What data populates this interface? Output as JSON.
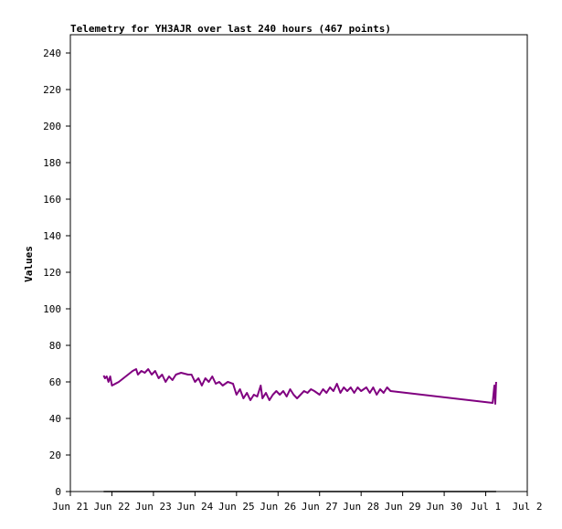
{
  "chart_data": {
    "type": "line",
    "title": "Telemetry for YH3AJR over last 240 hours (467 points)",
    "ylabel": "Values",
    "xlabel": "",
    "ylim": [
      0,
      250
    ],
    "xlim": [
      "Jun 21",
      "Jul 2"
    ],
    "y_ticks": [
      0,
      20,
      40,
      60,
      80,
      100,
      120,
      140,
      160,
      180,
      200,
      220,
      240
    ],
    "x_ticks": [
      "Jun 21",
      "Jun 22",
      "Jun 23",
      "Jun 24",
      "Jun 25",
      "Jun 26",
      "Jun 27",
      "Jun 28",
      "Jun 29",
      "Jun 30",
      "Jul 1",
      "Jul 2"
    ],
    "grid": false,
    "colors": {
      "series": "#800080",
      "baseline": "#000000",
      "axis": "#000000"
    },
    "series": [
      {
        "color": "#800080",
        "points": [
          [
            "Jun 21 19:12",
            63.5
          ],
          [
            "Jun 21 20:00",
            62
          ],
          [
            "Jun 21 21:00",
            63
          ],
          [
            "Jun 21 22:00",
            60
          ],
          [
            "Jun 21 23:00",
            63
          ],
          [
            "Jun 22 00:00",
            58
          ],
          [
            "Jun 22 04:00",
            60
          ],
          [
            "Jun 22 08:00",
            63
          ],
          [
            "Jun 22 12:00",
            66
          ],
          [
            "Jun 22 14:00",
            67
          ],
          [
            "Jun 22 15:00",
            64
          ],
          [
            "Jun 22 17:00",
            66
          ],
          [
            "Jun 22 19:00",
            65
          ],
          [
            "Jun 22 21:00",
            67
          ],
          [
            "Jun 22 23:00",
            64
          ],
          [
            "Jun 23 01:00",
            66
          ],
          [
            "Jun 23 03:00",
            62
          ],
          [
            "Jun 23 05:00",
            64
          ],
          [
            "Jun 23 07:00",
            60
          ],
          [
            "Jun 23 09:00",
            63
          ],
          [
            "Jun 23 11:00",
            61
          ],
          [
            "Jun 23 13:00",
            64
          ],
          [
            "Jun 23 16:00",
            65
          ],
          [
            "Jun 23 20:00",
            64
          ],
          [
            "Jun 23 22:00",
            64
          ],
          [
            "Jun 24 00:00",
            60
          ],
          [
            "Jun 24 02:00",
            62
          ],
          [
            "Jun 24 04:00",
            58
          ],
          [
            "Jun 24 06:00",
            62
          ],
          [
            "Jun 24 08:00",
            60
          ],
          [
            "Jun 24 10:00",
            63
          ],
          [
            "Jun 24 12:00",
            59
          ],
          [
            "Jun 24 14:00",
            60
          ],
          [
            "Jun 24 16:00",
            58
          ],
          [
            "Jun 24 19:00",
            60
          ],
          [
            "Jun 24 22:00",
            59
          ],
          [
            "Jun 25 00:00",
            53
          ],
          [
            "Jun 25 02:00",
            56
          ],
          [
            "Jun 25 04:00",
            51
          ],
          [
            "Jun 25 06:00",
            54
          ],
          [
            "Jun 25 08:00",
            50
          ],
          [
            "Jun 25 10:00",
            53
          ],
          [
            "Jun 25 12:00",
            52
          ],
          [
            "Jun 25 14:00",
            58
          ],
          [
            "Jun 25 15:00",
            51
          ],
          [
            "Jun 25 17:00",
            54
          ],
          [
            "Jun 25 19:00",
            50
          ],
          [
            "Jun 25 21:00",
            53
          ],
          [
            "Jun 25 23:00",
            55
          ],
          [
            "Jun 26 01:00",
            53
          ],
          [
            "Jun 26 03:00",
            55
          ],
          [
            "Jun 26 05:00",
            52
          ],
          [
            "Jun 26 07:00",
            56
          ],
          [
            "Jun 26 09:00",
            53
          ],
          [
            "Jun 26 11:00",
            51
          ],
          [
            "Jun 26 13:00",
            53
          ],
          [
            "Jun 26 15:00",
            55
          ],
          [
            "Jun 26 17:00",
            54
          ],
          [
            "Jun 26 19:00",
            56
          ],
          [
            "Jun 26 21:00",
            55
          ],
          [
            "Jun 27 00:00",
            53
          ],
          [
            "Jun 27 02:00",
            56
          ],
          [
            "Jun 27 04:00",
            54
          ],
          [
            "Jun 27 06:00",
            57
          ],
          [
            "Jun 27 08:00",
            55
          ],
          [
            "Jun 27 10:00",
            59
          ],
          [
            "Jun 27 12:00",
            54
          ],
          [
            "Jun 27 14:00",
            57
          ],
          [
            "Jun 27 16:00",
            55
          ],
          [
            "Jun 27 18:00",
            57
          ],
          [
            "Jun 27 20:00",
            54
          ],
          [
            "Jun 27 22:00",
            57
          ],
          [
            "Jun 28 00:00",
            55
          ],
          [
            "Jun 28 03:00",
            57
          ],
          [
            "Jun 28 05:00",
            54
          ],
          [
            "Jun 28 07:00",
            57
          ],
          [
            "Jun 28 09:00",
            53
          ],
          [
            "Jun 28 11:00",
            56
          ],
          [
            "Jun 28 13:00",
            54
          ],
          [
            "Jun 28 15:00",
            57
          ],
          [
            "Jun 28 17:00",
            55
          ],
          [
            "Jul 1 04:00",
            48.5
          ],
          [
            "Jul 1 05:00",
            58
          ],
          [
            "Jul 1 05:30",
            48
          ],
          [
            "Jul 1 06:00",
            60
          ]
        ]
      },
      {
        "color": "#000000",
        "points": [
          [
            "Jun 21 19:12",
            0
          ],
          [
            "Jul 1 06:00",
            0
          ]
        ]
      }
    ]
  }
}
